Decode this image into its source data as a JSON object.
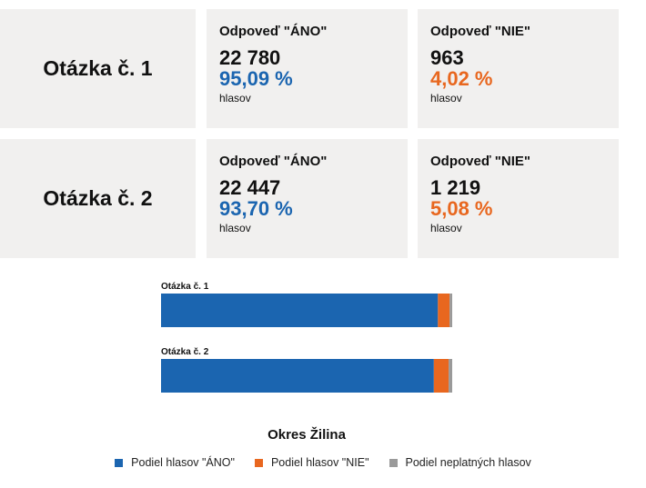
{
  "cards": [
    {
      "question": "Otázka č. 1",
      "yes": {
        "heading": "Odpoveď \"ÁNO\"",
        "count": "22 780",
        "percent": "95,09 %",
        "unit": "hlasov"
      },
      "no": {
        "heading": "Odpoveď \"NIE\"",
        "count": "963",
        "percent": "4,02 %",
        "unit": "hlasov"
      }
    },
    {
      "question": "Otázka č. 2",
      "yes": {
        "heading": "Odpoveď \"ÁNO\"",
        "count": "22 447",
        "percent": "93,70 %",
        "unit": "hlasov"
      },
      "no": {
        "heading": "Odpoveď \"NIE\"",
        "count": "1 219",
        "percent": "5,08 %",
        "unit": "hlasov"
      }
    }
  ],
  "colors": {
    "yes": "#1b65b0",
    "no": "#e8671f",
    "invalid": "#9a9a9a",
    "card_bg": "#f1f0ef"
  },
  "chart_data": {
    "type": "bar",
    "orientation": "horizontal",
    "stacked": true,
    "title": "Okres Žilina",
    "categories": [
      "Otázka č. 1",
      "Otázka č. 2"
    ],
    "series": [
      {
        "name": "Podiel hlasov \"ÁNO\"",
        "color": "#1b65b0",
        "values": [
          95.09,
          93.7
        ]
      },
      {
        "name": "Podiel hlasov \"NIE\"",
        "color": "#e8671f",
        "values": [
          4.02,
          5.08
        ]
      },
      {
        "name": "Podiel neplatných hlasov",
        "color": "#9a9a9a",
        "values": [
          0.89,
          1.22
        ]
      }
    ],
    "xlim": [
      0,
      100
    ],
    "legend_position": "bottom",
    "grid": false
  }
}
